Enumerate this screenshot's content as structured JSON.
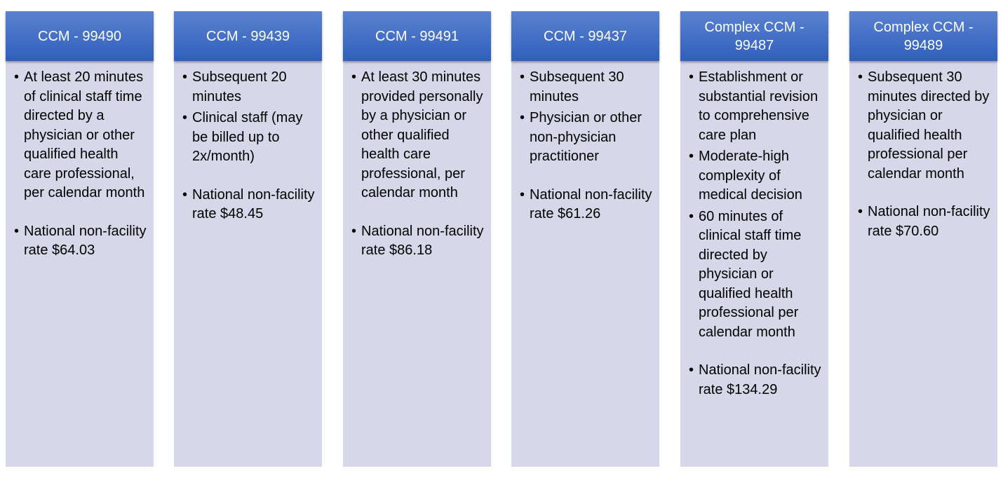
{
  "columns": [
    {
      "title": "CCM - 99490",
      "items": [
        {
          "text": "At least 20 minutes of clinical staff time directed by a physician or other qualified health care professional, per calendar month",
          "gap": false
        },
        {
          "text": "National non-facility rate $64.03",
          "gap": true
        }
      ]
    },
    {
      "title": "CCM - 99439",
      "items": [
        {
          "text": "Subsequent 20 minutes",
          "gap": false
        },
        {
          "text": "Clinical staff (may be billed up to 2x/month)",
          "gap": false
        },
        {
          "text": "National non-facility rate $48.45",
          "gap": true
        }
      ]
    },
    {
      "title": "CCM - 99491",
      "items": [
        {
          "text": "At least 30 minutes provided personally by a physician or other qualified health care professional, per calendar month",
          "gap": false
        },
        {
          "text": "National non-facility rate $86.18",
          "gap": true
        }
      ]
    },
    {
      "title": "CCM - 99437",
      "items": [
        {
          "text": "Subsequent 30 minutes",
          "gap": false
        },
        {
          "text": "Physician or other non-physician practitioner",
          "gap": false
        },
        {
          "text": "National non-facility rate $61.26",
          "gap": true
        }
      ]
    },
    {
      "title": "Complex CCM - 99487",
      "items": [
        {
          "text": "Establishment or substantial revision to comprehensive care plan",
          "gap": false
        },
        {
          "text": "Moderate-high complexity of medical decision",
          "gap": false
        },
        {
          "text": "60 minutes of clinical staff time directed by physician or qualified health professional per calendar month",
          "gap": false
        },
        {
          "text": "National non-facility rate $134.29",
          "gap": true
        }
      ]
    },
    {
      "title": "Complex CCM - 99489",
      "items": [
        {
          "text": "Subsequent 30 minutes directed by physician or qualified health professional per calendar month",
          "gap": false
        },
        {
          "text": "National non-facility rate $70.60",
          "gap": true
        }
      ]
    }
  ]
}
